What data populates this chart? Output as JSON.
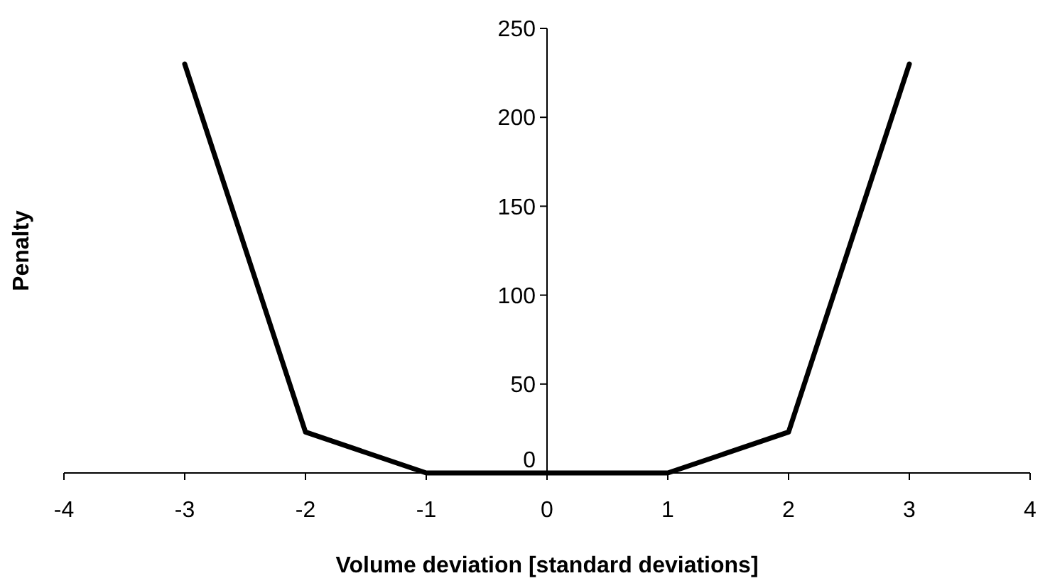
{
  "chart_data": {
    "type": "line",
    "xlabel": "Volume deviation [standard deviations]",
    "ylabel": "Penalty",
    "x": [
      -3,
      -2,
      -1,
      1,
      2,
      3
    ],
    "series": [
      {
        "color": "#000000",
        "values": [
          230,
          23,
          0,
          0,
          23,
          230
        ]
      }
    ],
    "xlim": [
      -4,
      4
    ],
    "xticks": [
      -4,
      -3,
      -2,
      -1,
      0,
      1,
      2,
      3,
      4
    ],
    "ylim": [
      0,
      250
    ],
    "yticks": [
      0,
      50,
      100,
      150,
      200,
      250
    ],
    "marker": "none",
    "line_style": "solid",
    "grid": false
  }
}
